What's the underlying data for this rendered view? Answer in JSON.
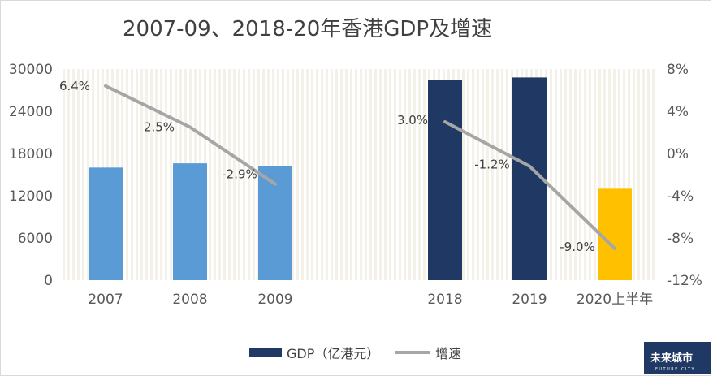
{
  "chart_data": {
    "type": "bar",
    "title": "2007-09、2018-20年香港GDP及增速",
    "categories": [
      "2007",
      "2008",
      "2009",
      "",
      "2018",
      "2019",
      "2020上半年"
    ],
    "series": [
      {
        "name": "GDP（亿港元）",
        "kind": "bar",
        "axis": "left",
        "values": [
          16000,
          16600,
          16200,
          null,
          28500,
          28800,
          13000
        ],
        "colors": [
          "#5b9bd5",
          "#5b9bd5",
          "#5b9bd5",
          null,
          "#203864",
          "#203864",
          "#ffc000"
        ]
      },
      {
        "name": "增速",
        "kind": "line",
        "axis": "right",
        "values": [
          6.4,
          2.5,
          -2.9,
          null,
          3.0,
          -1.2,
          -9.0
        ],
        "labels": [
          "6.4%",
          "2.5%",
          "-2.9%",
          null,
          "3.0%",
          "-1.2%",
          "-9.0%"
        ],
        "color": "#a6a6a6"
      }
    ],
    "y_left": {
      "ylim": [
        0,
        30000
      ],
      "ticks": [
        "0",
        "6000",
        "12000",
        "18000",
        "24000",
        "30000"
      ]
    },
    "y_right": {
      "ylim": [
        -12,
        8
      ],
      "ticks": [
        "-12%",
        "-8%",
        "-4%",
        "0%",
        "4%",
        "8%"
      ]
    },
    "legend_position": "bottom",
    "grid": false,
    "background": "vertical light stripes"
  },
  "logo": {
    "main": "未来城市",
    "sub": "FUTURE CITY"
  }
}
